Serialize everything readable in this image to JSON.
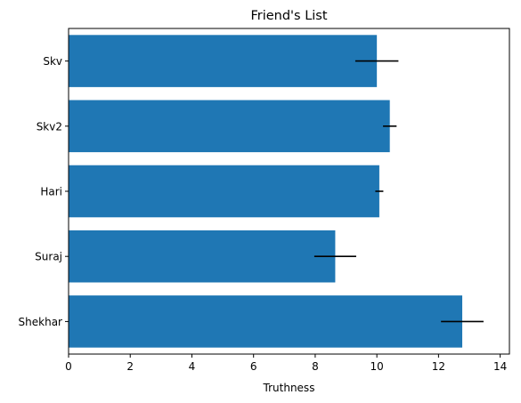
{
  "chart_data": {
    "type": "bar",
    "orientation": "horizontal",
    "title": "Friend's List",
    "xlabel": "Truthness",
    "ylabel": "",
    "categories": [
      "Skv",
      "Skv2",
      "Hari",
      "Suraj",
      "Shekhar"
    ],
    "values": [
      10.0,
      10.42,
      10.08,
      8.65,
      12.77
    ],
    "errors": [
      0.7,
      0.22,
      0.13,
      0.68,
      0.69
    ],
    "xlim": [
      0,
      14.3
    ],
    "xticks": [
      0,
      2,
      4,
      6,
      8,
      10,
      12,
      14
    ],
    "grid": false,
    "bar_color": "#1f77b4",
    "error_color": "#000000"
  }
}
